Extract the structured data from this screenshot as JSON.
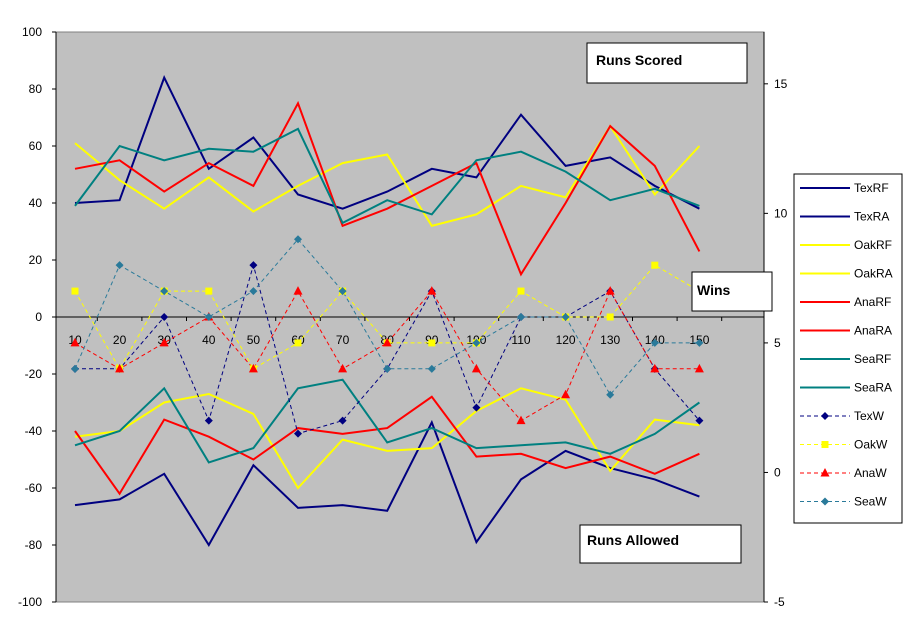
{
  "chart_data": {
    "type": "line",
    "x": [
      10,
      20,
      30,
      40,
      50,
      60,
      70,
      80,
      90,
      100,
      110,
      120,
      130,
      140,
      150
    ],
    "left_axis": {
      "ylim": [
        -100,
        100
      ],
      "ticks": [
        -100,
        -80,
        -60,
        -40,
        -20,
        0,
        20,
        40,
        60,
        80,
        100
      ]
    },
    "right_axis": {
      "ylim": [
        -5,
        17
      ],
      "ticks": [
        -5,
        0,
        5,
        10,
        15
      ]
    },
    "x_tick_labels": [
      "10",
      "20",
      "30",
      "40",
      "50",
      "60",
      "70",
      "80",
      "90",
      "100",
      "110",
      "120",
      "130",
      "140",
      "150"
    ],
    "annotations": {
      "runs_scored": "Runs Scored",
      "wins": "Wins",
      "runs_allowed": "Runs Allowed"
    },
    "grid": false,
    "legend_position": "right",
    "series": [
      {
        "name": "TexRF",
        "axis": "left",
        "color": "#000080",
        "style": "solid",
        "values": [
          40,
          41,
          84,
          52,
          63,
          43,
          38,
          44,
          52,
          49,
          71,
          53,
          56,
          46,
          38
        ]
      },
      {
        "name": "TexRA",
        "axis": "left",
        "color": "#000080",
        "style": "solid",
        "values": [
          -66,
          -64,
          -55,
          -80,
          -52,
          -67,
          -66,
          -68,
          -37,
          -79,
          -57,
          -47,
          -53,
          -57,
          -63
        ]
      },
      {
        "name": "OakRF",
        "axis": "left",
        "color": "#FFFF00",
        "style": "solid",
        "values": [
          61,
          48,
          38,
          49,
          37,
          46,
          54,
          57,
          32,
          36,
          46,
          42,
          67,
          43,
          60
        ]
      },
      {
        "name": "OakRA",
        "axis": "left",
        "color": "#FFFF00",
        "style": "solid",
        "values": [
          -42,
          -40,
          -30,
          -27,
          -34,
          -60,
          -43,
          -47,
          -46,
          -33,
          -25,
          -29,
          -54,
          -36,
          -38
        ]
      },
      {
        "name": "AnaRF",
        "axis": "left",
        "color": "#FF0000",
        "style": "solid",
        "values": [
          52,
          55,
          44,
          54,
          46,
          75,
          32,
          38,
          46,
          54,
          15,
          40,
          67,
          53,
          23
        ]
      },
      {
        "name": "AnaRA",
        "axis": "left",
        "color": "#FF0000",
        "style": "solid",
        "values": [
          -40,
          -62,
          -36,
          -42,
          -50,
          -39,
          -41,
          -39,
          -28,
          -49,
          -48,
          -53,
          -49,
          -55,
          -48
        ]
      },
      {
        "name": "SeaRF",
        "axis": "left",
        "color": "#008080",
        "style": "solid",
        "values": [
          39,
          60,
          55,
          59,
          58,
          66,
          33,
          41,
          36,
          55,
          58,
          51,
          41,
          45,
          39
        ]
      },
      {
        "name": "SeaRA",
        "axis": "left",
        "color": "#008080",
        "style": "solid",
        "values": [
          -45,
          -40,
          -25,
          -51,
          -46,
          -25,
          -22,
          -44,
          -39,
          -46,
          -45,
          -44,
          -48,
          -41,
          -30
        ]
      },
      {
        "name": "TexW",
        "axis": "right",
        "color": "#000080",
        "style": "dashed",
        "marker": "diamond",
        "values": [
          4,
          4,
          6,
          2,
          8,
          1.5,
          2,
          4,
          7,
          2.5,
          6,
          6,
          7,
          4,
          2
        ]
      },
      {
        "name": "OakW",
        "axis": "right",
        "color": "#FFFF00",
        "style": "dashed",
        "marker": "square",
        "values": [
          7,
          4,
          7,
          7,
          4,
          5,
          7,
          5,
          5,
          5,
          7,
          6,
          6,
          8,
          7
        ]
      },
      {
        "name": "AnaW",
        "axis": "right",
        "color": "#FF0000",
        "style": "dashed",
        "marker": "triangle",
        "values": [
          5,
          4,
          5,
          6,
          4,
          7,
          4,
          5,
          7,
          4,
          2,
          3,
          7,
          4,
          4
        ]
      },
      {
        "name": "SeaW",
        "axis": "right",
        "color": "#008080",
        "style": "dashed",
        "marker": "diamond",
        "values": [
          4,
          8,
          7,
          6,
          7,
          9,
          7,
          4,
          4,
          5,
          6,
          6,
          3,
          5,
          5
        ]
      }
    ]
  }
}
